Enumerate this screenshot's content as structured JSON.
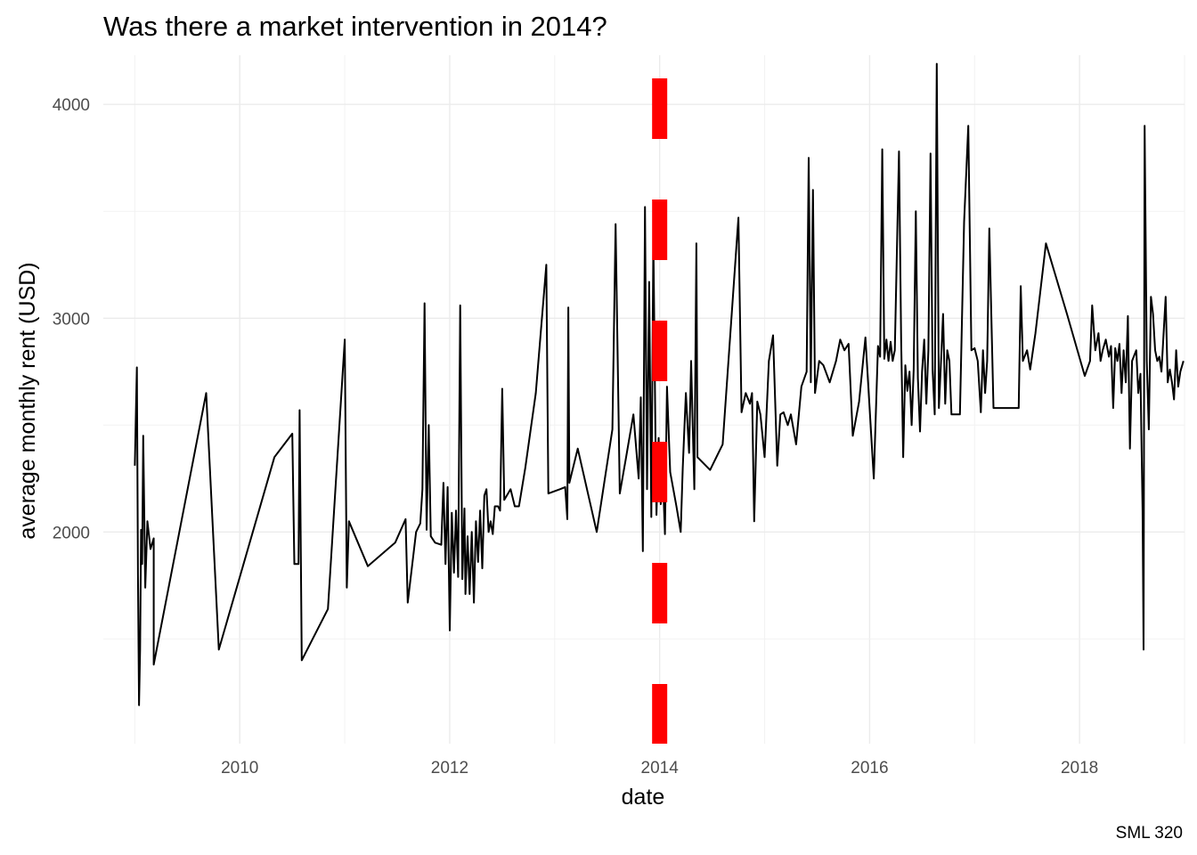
{
  "chart_data": {
    "type": "line",
    "title": "Was there a market intervention in 2014?",
    "xlabel": "date",
    "ylabel": "average monthly rent (USD)",
    "caption": "SML 320",
    "xlim": [
      2008.7,
      2019.0
    ],
    "ylim": [
      1010,
      4230
    ],
    "x_ticks": [
      2010,
      2012,
      2014,
      2016,
      2018
    ],
    "x_tick_labels": [
      "2010",
      "2012",
      "2014",
      "2016",
      "2018"
    ],
    "y_ticks": [
      2000,
      3000,
      4000
    ],
    "y_tick_labels": [
      "2000",
      "3000",
      "4000"
    ],
    "grid": true,
    "legend": "none",
    "vline": {
      "x": 2014.0,
      "style": "dashed",
      "color": "#ff0000"
    },
    "series": [
      {
        "color": "#000000",
        "points": [
          [
            2009.0,
            2310
          ],
          [
            2009.02,
            2770
          ],
          [
            2009.03,
            1800
          ],
          [
            2009.04,
            1190
          ],
          [
            2009.05,
            1450
          ],
          [
            2009.06,
            2010
          ],
          [
            2009.07,
            1850
          ],
          [
            2009.08,
            2450
          ],
          [
            2009.1,
            1740
          ],
          [
            2009.12,
            2050
          ],
          [
            2009.15,
            1920
          ],
          [
            2009.18,
            1970
          ],
          [
            2009.18,
            1380
          ],
          [
            2009.68,
            2650
          ],
          [
            2009.8,
            1450
          ],
          [
            2010.33,
            2350
          ],
          [
            2010.5,
            2460
          ],
          [
            2010.52,
            1850
          ],
          [
            2010.56,
            1850
          ],
          [
            2010.57,
            2570
          ],
          [
            2010.59,
            1400
          ],
          [
            2010.84,
            1640
          ],
          [
            2011.0,
            2900
          ],
          [
            2011.02,
            1740
          ],
          [
            2011.04,
            2050
          ],
          [
            2011.22,
            1840
          ],
          [
            2011.48,
            1950
          ],
          [
            2011.58,
            2060
          ],
          [
            2011.6,
            1670
          ],
          [
            2011.68,
            2000
          ],
          [
            2011.72,
            2040
          ],
          [
            2011.74,
            2200
          ],
          [
            2011.76,
            3070
          ],
          [
            2011.78,
            2010
          ],
          [
            2011.8,
            2500
          ],
          [
            2011.82,
            1980
          ],
          [
            2011.86,
            1950
          ],
          [
            2011.92,
            1940
          ],
          [
            2011.94,
            2230
          ],
          [
            2011.96,
            1850
          ],
          [
            2011.98,
            2210
          ],
          [
            2012.0,
            1540
          ],
          [
            2012.02,
            2090
          ],
          [
            2012.04,
            1810
          ],
          [
            2012.06,
            2100
          ],
          [
            2012.08,
            1790
          ],
          [
            2012.1,
            3060
          ],
          [
            2012.12,
            1780
          ],
          [
            2012.14,
            2110
          ],
          [
            2012.15,
            1710
          ],
          [
            2012.17,
            1980
          ],
          [
            2012.19,
            1710
          ],
          [
            2012.21,
            2000
          ],
          [
            2012.23,
            1670
          ],
          [
            2012.25,
            2050
          ],
          [
            2012.27,
            1860
          ],
          [
            2012.29,
            2100
          ],
          [
            2012.31,
            1830
          ],
          [
            2012.33,
            2170
          ],
          [
            2012.35,
            2200
          ],
          [
            2012.37,
            2000
          ],
          [
            2012.39,
            2050
          ],
          [
            2012.41,
            1990
          ],
          [
            2012.43,
            2120
          ],
          [
            2012.46,
            2120
          ],
          [
            2012.48,
            2100
          ],
          [
            2012.5,
            2670
          ],
          [
            2012.52,
            2150
          ],
          [
            2012.58,
            2200
          ],
          [
            2012.62,
            2120
          ],
          [
            2012.66,
            2120
          ],
          [
            2012.72,
            2300
          ],
          [
            2012.82,
            2650
          ],
          [
            2012.92,
            3250
          ],
          [
            2012.94,
            2180
          ],
          [
            2013.05,
            2200
          ],
          [
            2013.1,
            2210
          ],
          [
            2013.12,
            2060
          ],
          [
            2013.13,
            3050
          ],
          [
            2013.14,
            2230
          ],
          [
            2013.22,
            2390
          ],
          [
            2013.4,
            2000
          ],
          [
            2013.55,
            2480
          ],
          [
            2013.58,
            3440
          ],
          [
            2013.62,
            2180
          ],
          [
            2013.68,
            2350
          ],
          [
            2013.75,
            2550
          ],
          [
            2013.8,
            2250
          ],
          [
            2013.82,
            2630
          ],
          [
            2013.84,
            1910
          ],
          [
            2013.86,
            3520
          ],
          [
            2013.88,
            2200
          ],
          [
            2013.9,
            3170
          ],
          [
            2013.92,
            2070
          ],
          [
            2013.94,
            3370
          ],
          [
            2013.96,
            2430
          ],
          [
            2013.97,
            2080
          ],
          [
            2013.99,
            2440
          ],
          [
            2014.01,
            2130
          ],
          [
            2014.03,
            2270
          ],
          [
            2014.05,
            1990
          ],
          [
            2014.07,
            2680
          ],
          [
            2014.1,
            2280
          ],
          [
            2014.13,
            2200
          ],
          [
            2014.16,
            2120
          ],
          [
            2014.2,
            2000
          ],
          [
            2014.22,
            2300
          ],
          [
            2014.25,
            2650
          ],
          [
            2014.28,
            2370
          ],
          [
            2014.3,
            2800
          ],
          [
            2014.33,
            2200
          ],
          [
            2014.35,
            3350
          ],
          [
            2014.36,
            2350
          ],
          [
            2014.48,
            2290
          ],
          [
            2014.6,
            2410
          ],
          [
            2014.75,
            3470
          ],
          [
            2014.78,
            2560
          ],
          [
            2014.82,
            2650
          ],
          [
            2014.86,
            2600
          ],
          [
            2014.88,
            2650
          ],
          [
            2014.9,
            2050
          ],
          [
            2014.93,
            2610
          ],
          [
            2014.96,
            2550
          ],
          [
            2015.0,
            2350
          ],
          [
            2015.04,
            2800
          ],
          [
            2015.08,
            2920
          ],
          [
            2015.12,
            2310
          ],
          [
            2015.15,
            2550
          ],
          [
            2015.18,
            2560
          ],
          [
            2015.22,
            2500
          ],
          [
            2015.25,
            2550
          ],
          [
            2015.3,
            2410
          ],
          [
            2015.35,
            2680
          ],
          [
            2015.4,
            2750
          ],
          [
            2015.42,
            3750
          ],
          [
            2015.44,
            2700
          ],
          [
            2015.46,
            3600
          ],
          [
            2015.48,
            2650
          ],
          [
            2015.52,
            2800
          ],
          [
            2015.56,
            2780
          ],
          [
            2015.62,
            2700
          ],
          [
            2015.68,
            2800
          ],
          [
            2015.72,
            2900
          ],
          [
            2015.76,
            2850
          ],
          [
            2015.8,
            2880
          ],
          [
            2015.84,
            2450
          ],
          [
            2015.9,
            2610
          ],
          [
            2015.96,
            2910
          ],
          [
            2016.04,
            2250
          ],
          [
            2016.08,
            2870
          ],
          [
            2016.1,
            2820
          ],
          [
            2016.12,
            3790
          ],
          [
            2016.14,
            2810
          ],
          [
            2016.16,
            2900
          ],
          [
            2016.18,
            2800
          ],
          [
            2016.2,
            2890
          ],
          [
            2016.22,
            2800
          ],
          [
            2016.24,
            2850
          ],
          [
            2016.28,
            3780
          ],
          [
            2016.3,
            2900
          ],
          [
            2016.31,
            2650
          ],
          [
            2016.32,
            2350
          ],
          [
            2016.34,
            2780
          ],
          [
            2016.36,
            2660
          ],
          [
            2016.38,
            2750
          ],
          [
            2016.4,
            2500
          ],
          [
            2016.42,
            2760
          ],
          [
            2016.44,
            3500
          ],
          [
            2016.46,
            2720
          ],
          [
            2016.48,
            2470
          ],
          [
            2016.5,
            2750
          ],
          [
            2016.52,
            2900
          ],
          [
            2016.54,
            2600
          ],
          [
            2016.56,
            2850
          ],
          [
            2016.58,
            3770
          ],
          [
            2016.6,
            2760
          ],
          [
            2016.62,
            2550
          ],
          [
            2016.64,
            4190
          ],
          [
            2016.66,
            2580
          ],
          [
            2016.68,
            2800
          ],
          [
            2016.7,
            3020
          ],
          [
            2016.72,
            2600
          ],
          [
            2016.74,
            2850
          ],
          [
            2016.76,
            2800
          ],
          [
            2016.78,
            2550
          ],
          [
            2016.86,
            2550
          ],
          [
            2016.9,
            3450
          ],
          [
            2016.94,
            3900
          ],
          [
            2016.97,
            2850
          ],
          [
            2017.0,
            2860
          ],
          [
            2017.03,
            2800
          ],
          [
            2017.06,
            2560
          ],
          [
            2017.08,
            2850
          ],
          [
            2017.1,
            2650
          ],
          [
            2017.12,
            2800
          ],
          [
            2017.14,
            3420
          ],
          [
            2017.18,
            2580
          ],
          [
            2017.42,
            2580
          ],
          [
            2017.44,
            3150
          ],
          [
            2017.46,
            2800
          ],
          [
            2017.5,
            2850
          ],
          [
            2017.53,
            2760
          ],
          [
            2017.58,
            2930
          ],
          [
            2017.68,
            3350
          ],
          [
            2017.88,
            3020
          ],
          [
            2018.05,
            2730
          ],
          [
            2018.1,
            2800
          ],
          [
            2018.12,
            3060
          ],
          [
            2018.15,
            2850
          ],
          [
            2018.18,
            2930
          ],
          [
            2018.2,
            2800
          ],
          [
            2018.22,
            2850
          ],
          [
            2018.25,
            2900
          ],
          [
            2018.28,
            2820
          ],
          [
            2018.3,
            2870
          ],
          [
            2018.32,
            2580
          ],
          [
            2018.34,
            2860
          ],
          [
            2018.36,
            2800
          ],
          [
            2018.38,
            2880
          ],
          [
            2018.4,
            2650
          ],
          [
            2018.42,
            2850
          ],
          [
            2018.44,
            2700
          ],
          [
            2018.46,
            3010
          ],
          [
            2018.48,
            2390
          ],
          [
            2018.5,
            2800
          ],
          [
            2018.54,
            2850
          ],
          [
            2018.56,
            2650
          ],
          [
            2018.58,
            2740
          ],
          [
            2018.6,
            2100
          ],
          [
            2018.61,
            1450
          ],
          [
            2018.62,
            3900
          ],
          [
            2018.64,
            2800
          ],
          [
            2018.66,
            2480
          ],
          [
            2018.68,
            3100
          ],
          [
            2018.7,
            3020
          ],
          [
            2018.72,
            2850
          ],
          [
            2018.74,
            2800
          ],
          [
            2018.76,
            2820
          ],
          [
            2018.78,
            2750
          ],
          [
            2018.82,
            3100
          ],
          [
            2018.84,
            2700
          ],
          [
            2018.86,
            2760
          ],
          [
            2018.88,
            2700
          ],
          [
            2018.9,
            2620
          ],
          [
            2018.92,
            2850
          ],
          [
            2018.94,
            2680
          ],
          [
            2018.96,
            2750
          ],
          [
            2018.99,
            2800
          ]
        ]
      }
    ]
  }
}
